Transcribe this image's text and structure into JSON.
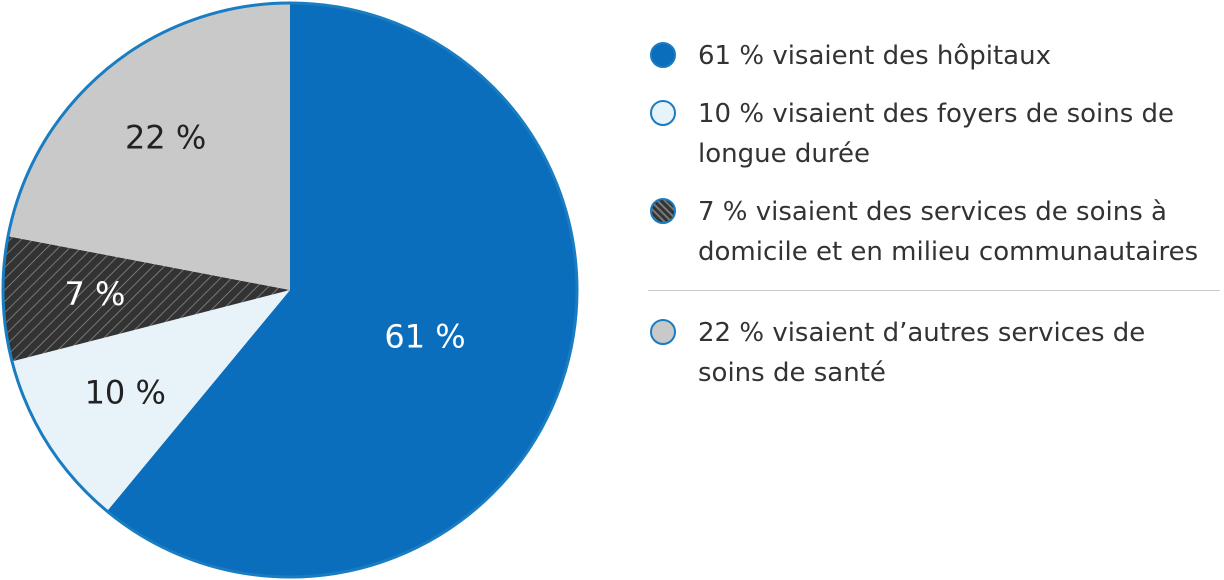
{
  "chart_data": {
    "type": "pie",
    "categories": [
      "61 % visaient des hôpitaux",
      "10 % visaient des foyers de soins de longue durée",
      "7 % visaient des services de soins à domicile et en milieu communautaires",
      "22 % visaient d’autres services de soins de santé"
    ],
    "values": [
      61,
      10,
      7,
      22
    ],
    "value_labels": [
      "61 %",
      "10 %",
      "7 %",
      "22 %"
    ],
    "colors": [
      "#0a6ebd",
      "#e8f2f9",
      "url(#hatch)",
      "#c9c9c9"
    ]
  }
}
